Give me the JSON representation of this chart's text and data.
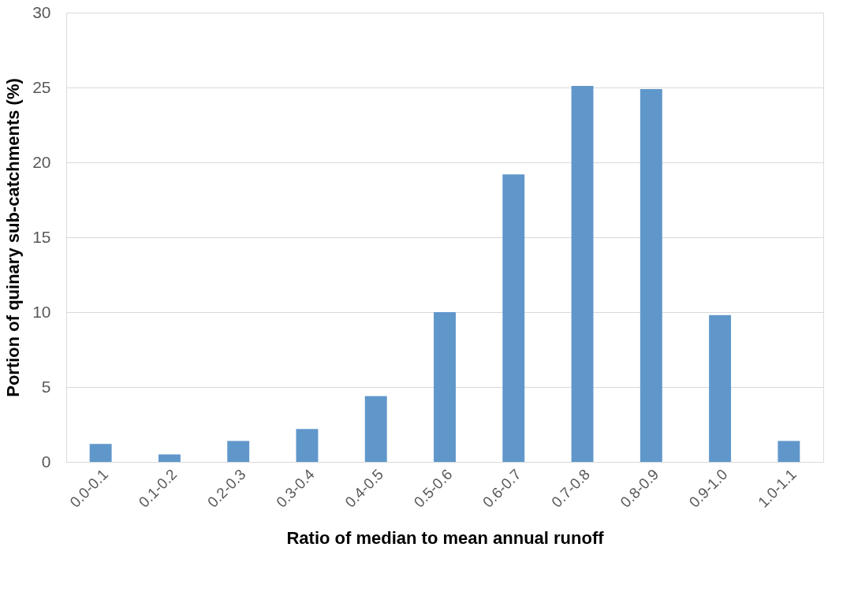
{
  "chart_data": {
    "type": "bar",
    "xlabel": "Ratio of median to mean annual runoff",
    "ylabel": "Portion of quinary sub-catchments (%)",
    "categories": [
      "0.0-0.1",
      "0.1-0.2",
      "0.2-0.3",
      "0.3-0.4",
      "0.4-0.5",
      "0.5-0.6",
      "0.6-0.7",
      "0.7-0.8",
      "0.8-0.9",
      "0.9-1.0",
      "1.0-1.1"
    ],
    "values": [
      1.2,
      0.5,
      1.4,
      2.2,
      4.4,
      10.0,
      19.2,
      25.1,
      24.9,
      9.8,
      1.4
    ],
    "color": "#6097cb",
    "ylim": [
      0,
      30
    ],
    "yticks": [
      0,
      5,
      10,
      15,
      20,
      25,
      30
    ],
    "grid": "y"
  }
}
